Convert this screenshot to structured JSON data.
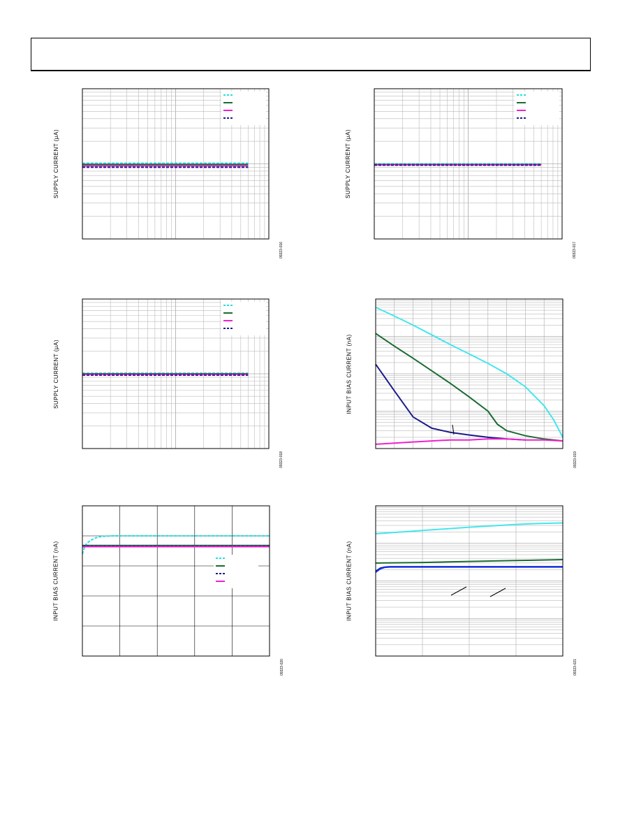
{
  "header": {
    "title": ""
  },
  "chart_data": [
    {
      "id": "c1",
      "type": "line",
      "log_x": true,
      "log_y": true,
      "grid": true,
      "legend_position": "top-right",
      "ylabel": "SUPPLY CURRENT (µA)",
      "figure_id": "09323-016",
      "xlim": [
        1,
        100
      ],
      "ylim": [
        0.1,
        10
      ],
      "series": [
        {
          "style": "dashed",
          "color": "#22e0e0",
          "x": [
            1,
            60
          ],
          "y": [
            1.02,
            1.02
          ]
        },
        {
          "style": "solid",
          "color": "#1a6b33",
          "x": [
            1,
            60
          ],
          "y": [
            0.98,
            0.98
          ]
        },
        {
          "style": "solid",
          "color": "#ee22cc",
          "x": [
            1,
            60
          ],
          "y": [
            0.94,
            0.94
          ]
        },
        {
          "style": "dashed",
          "color": "#1a1a8a",
          "x": [
            1,
            60
          ],
          "y": [
            0.9,
            0.9
          ]
        }
      ]
    },
    {
      "id": "c2",
      "type": "line",
      "log_x": true,
      "log_y": true,
      "grid": true,
      "legend_position": "top-right",
      "ylabel": "SUPPLY CURRENT (µA)",
      "figure_id": "09323-017",
      "xlim": [
        1,
        100
      ],
      "ylim": [
        0.1,
        10
      ],
      "series": [
        {
          "style": "dashed",
          "color": "#22e0e0",
          "x": [
            1,
            60
          ],
          "y": [
            1.0,
            1.0
          ]
        },
        {
          "style": "solid",
          "color": "#1a6b33",
          "x": [
            1,
            60
          ],
          "y": [
            0.98,
            0.98
          ]
        },
        {
          "style": "solid",
          "color": "#ee22cc",
          "x": [
            1,
            60
          ],
          "y": [
            0.97,
            0.97
          ]
        },
        {
          "style": "dashed",
          "color": "#1a1a8a",
          "x": [
            1,
            60
          ],
          "y": [
            0.96,
            0.96
          ]
        }
      ]
    },
    {
      "id": "c3",
      "type": "line",
      "log_x": true,
      "log_y": true,
      "grid": true,
      "legend_position": "top-right",
      "ylabel": "SUPPLY CURRENT (µA)",
      "figure_id": "09323-018",
      "xlim": [
        1,
        100
      ],
      "ylim": [
        0.1,
        10
      ],
      "series": [
        {
          "style": "dashed",
          "color": "#22e0e0",
          "x": [
            1,
            60
          ],
          "y": [
            1.02,
            1.02
          ]
        },
        {
          "style": "solid",
          "color": "#1a6b33",
          "x": [
            1,
            60
          ],
          "y": [
            1.0,
            1.0
          ]
        },
        {
          "style": "solid",
          "color": "#ee22cc",
          "x": [
            1,
            60
          ],
          "y": [
            0.98,
            0.98
          ]
        },
        {
          "style": "dashed",
          "color": "#1a1a8a",
          "x": [
            1,
            60
          ],
          "y": [
            0.96,
            0.96
          ]
        }
      ]
    },
    {
      "id": "c4",
      "type": "line",
      "log_x": false,
      "log_y": true,
      "grid": true,
      "ylabel": "INPUT BIAS CURRENT (nA)",
      "figure_id": "09323-019",
      "xlim": [
        0,
        100
      ],
      "ylim": [
        0.01,
        100
      ],
      "series": [
        {
          "style": "solid",
          "color": "#44e6ee",
          "x": [
            0,
            10,
            20,
            30,
            40,
            50,
            60,
            70,
            80,
            90,
            95,
            100
          ],
          "y": [
            60,
            35,
            20,
            11,
            6,
            3.4,
            1.9,
            1.0,
            0.45,
            0.14,
            0.06,
            0.02
          ]
        },
        {
          "style": "solid",
          "color": "#1a6b33",
          "x": [
            0,
            10,
            20,
            30,
            40,
            50,
            60,
            65,
            70,
            80,
            90,
            100
          ],
          "y": [
            12,
            5.5,
            2.6,
            1.2,
            0.55,
            0.24,
            0.1,
            0.045,
            0.03,
            0.022,
            0.018,
            0.016
          ]
        },
        {
          "style": "solid",
          "color": "#1a1a8a",
          "x": [
            0,
            10,
            20,
            30,
            40,
            50,
            60,
            70,
            80
          ],
          "y": [
            1.8,
            0.35,
            0.07,
            0.035,
            0.027,
            0.023,
            0.02,
            0.018,
            0.017
          ]
        },
        {
          "style": "solid",
          "color": "#ee22cc",
          "x": [
            0,
            10,
            20,
            30,
            40,
            50,
            60,
            70,
            80,
            90,
            100
          ],
          "y": [
            0.013,
            0.014,
            0.015,
            0.016,
            0.017,
            0.017,
            0.018,
            0.018,
            0.017,
            0.017,
            0.016
          ]
        }
      ]
    },
    {
      "id": "c5",
      "type": "line",
      "log_x": false,
      "log_y": false,
      "grid": true,
      "legend_position": "center-right",
      "ylabel": "INPUT BIAS CURRENT (nA)",
      "figure_id": "09323-020",
      "xlim": [
        0,
        5
      ],
      "ylim": [
        0,
        5
      ],
      "series": [
        {
          "style": "dashed",
          "color": "#22e0e0",
          "x": [
            0,
            0.05,
            0.1,
            0.2,
            0.35,
            0.5,
            0.8,
            1.2,
            5
          ],
          "y": [
            3.4,
            3.6,
            3.72,
            3.84,
            3.93,
            3.98,
            4.0,
            4.0,
            4.0
          ]
        },
        {
          "style": "solid",
          "color": "#1a6b33",
          "x": [
            0,
            5
          ],
          "y": [
            3.68,
            3.68
          ]
        },
        {
          "style": "dashed",
          "color": "#1a1a8a",
          "x": [
            0,
            5
          ],
          "y": [
            3.66,
            3.66
          ]
        },
        {
          "style": "solid",
          "color": "#ee22cc",
          "x": [
            0,
            5
          ],
          "y": [
            3.64,
            3.64
          ]
        }
      ]
    },
    {
      "id": "c6",
      "type": "line",
      "log_x": false,
      "log_y": true,
      "grid": true,
      "ylabel": "INPUT BIAS CURRENT (nA)",
      "figure_id": "09323-021",
      "xlim": [
        0,
        4
      ],
      "ylim": [
        0.001,
        10
      ],
      "series": [
        {
          "style": "solid",
          "color": "#44e6ee",
          "x": [
            0,
            1,
            2,
            3,
            3.5,
            4
          ],
          "y": [
            1.8,
            2.2,
            2.7,
            3.2,
            3.4,
            3.5
          ]
        },
        {
          "style": "solid",
          "color": "#1a6b33",
          "x": [
            0,
            1,
            2,
            3,
            4
          ],
          "y": [
            0.3,
            0.31,
            0.33,
            0.35,
            0.37
          ]
        },
        {
          "style": "solid",
          "color": "#1a1a8a",
          "x": [
            0,
            0.1,
            0.2,
            0.3,
            1,
            2,
            3,
            4
          ],
          "y": [
            0.18,
            0.22,
            0.235,
            0.24,
            0.24,
            0.24,
            0.24,
            0.24
          ]
        },
        {
          "style": "solid",
          "color": "#1133ee",
          "x": [
            0,
            0.1,
            0.2,
            0.3,
            1,
            2,
            3,
            4
          ],
          "y": [
            0.17,
            0.21,
            0.23,
            0.235,
            0.235,
            0.235,
            0.235,
            0.235
          ]
        }
      ]
    }
  ]
}
